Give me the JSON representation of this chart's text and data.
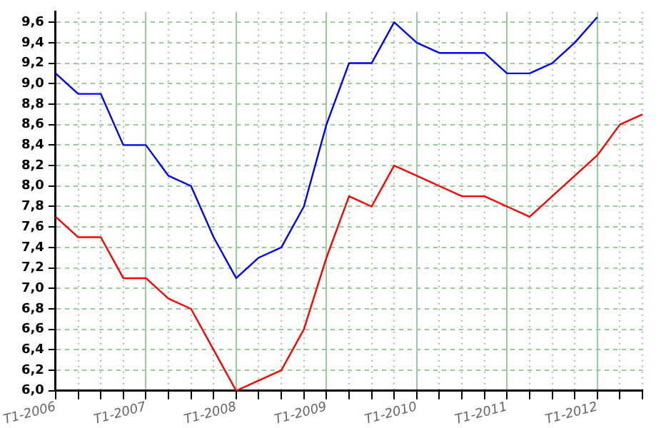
{
  "chart_data": {
    "type": "line",
    "categories": [
      "T1-2006",
      null,
      null,
      null,
      "T1-2007",
      null,
      null,
      null,
      "T1-2008",
      null,
      null,
      null,
      "T1-2009",
      null,
      null,
      null,
      "T1-2010",
      null,
      null,
      null,
      "T1-2011",
      null,
      null,
      null,
      "T1-2012",
      null,
      null
    ],
    "series": [
      {
        "color": "#0000ff",
        "values": [
          9.1,
          8.9,
          8.9,
          8.4,
          8.4,
          8.1,
          8.0,
          7.5,
          7.1,
          7.3,
          7.4,
          7.8,
          8.6,
          9.2,
          9.2,
          9.6,
          9.4,
          9.3,
          9.3,
          9.3,
          9.1,
          9.1,
          9.2,
          9.4,
          9.65,
          null,
          null
        ]
      },
      {
        "color": "#ff0000",
        "values": [
          7.7,
          7.5,
          7.5,
          7.1,
          7.1,
          6.9,
          6.8,
          6.4,
          6.0,
          6.1,
          6.2,
          6.6,
          7.3,
          7.9,
          7.8,
          8.2,
          8.1,
          8.0,
          7.9,
          7.9,
          7.8,
          7.7,
          7.9,
          8.1,
          8.3,
          8.6,
          8.7
        ]
      }
    ],
    "ylim": [
      6.0,
      9.7
    ],
    "yticks": [
      {
        "value": 6.0,
        "label": "6,0"
      },
      {
        "value": 6.2,
        "label": "6,2"
      },
      {
        "value": 6.4,
        "label": "6,4"
      },
      {
        "value": 6.6,
        "label": "6,6"
      },
      {
        "value": 6.8,
        "label": "6,8"
      },
      {
        "value": 7.0,
        "label": "7,0"
      },
      {
        "value": 7.2,
        "label": "7,2"
      },
      {
        "value": 7.4,
        "label": "7,4"
      },
      {
        "value": 7.6,
        "label": "7,6"
      },
      {
        "value": 7.8,
        "label": "7,8"
      },
      {
        "value": 8.0,
        "label": "8,0"
      },
      {
        "value": 8.2,
        "label": "8,2"
      },
      {
        "value": 8.4,
        "label": "8,4"
      },
      {
        "value": 8.6,
        "label": "8,6"
      },
      {
        "value": 8.8,
        "label": "8,8"
      },
      {
        "value": 9.0,
        "label": "9,0"
      },
      {
        "value": 9.2,
        "label": "9,2"
      },
      {
        "value": 9.4,
        "label": "9,4"
      },
      {
        "value": 9.6,
        "label": "9,6"
      }
    ],
    "grid": true,
    "marker": "none",
    "line_style": "solid",
    "legend": false
  }
}
